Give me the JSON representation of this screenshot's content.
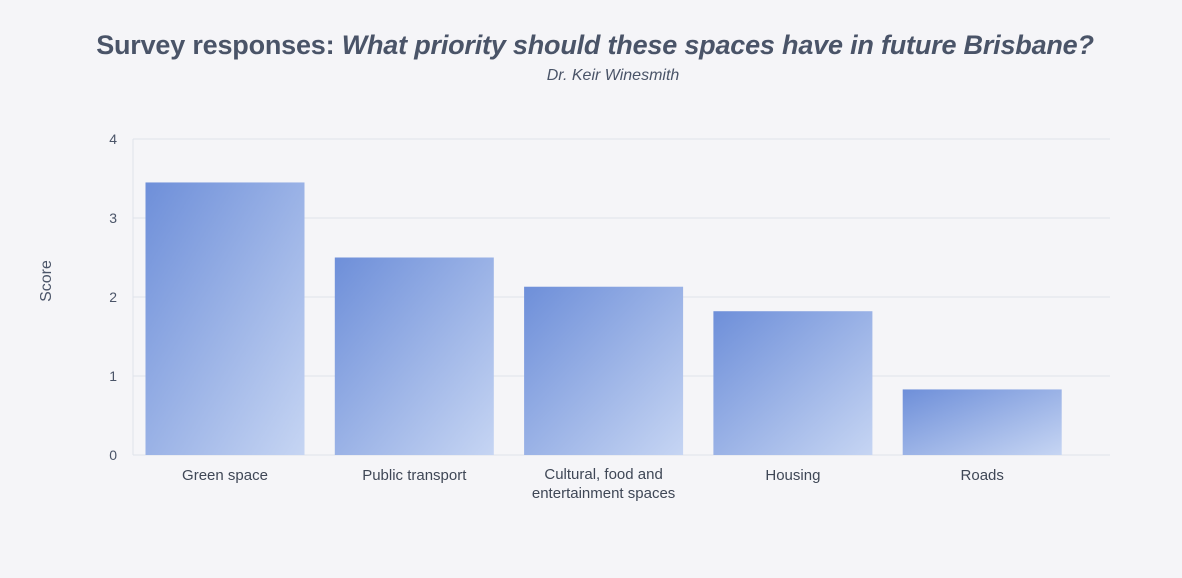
{
  "title_prefix": "Survey responses: ",
  "title_question": "What priority should these spaces have in future Brisbane?",
  "subtitle": "Dr. Keir Winesmith",
  "colors": {
    "bar_top": "#6e8fd9",
    "bar_bottom": "#c6d5f3",
    "grid": "#dfe2ea",
    "text": "#4a5468"
  },
  "chart_data": {
    "type": "bar",
    "categories": [
      [
        "Green space"
      ],
      [
        "Public transport"
      ],
      [
        "Cultural, food and",
        "entertainment spaces"
      ],
      [
        "Housing"
      ],
      [
        "Roads"
      ]
    ],
    "values": [
      3.45,
      2.5,
      2.13,
      1.82,
      0.83
    ],
    "ylabel": "Score",
    "ylim": [
      0,
      4
    ],
    "yticks": [
      0,
      1,
      2,
      3,
      4
    ],
    "grid": true
  }
}
